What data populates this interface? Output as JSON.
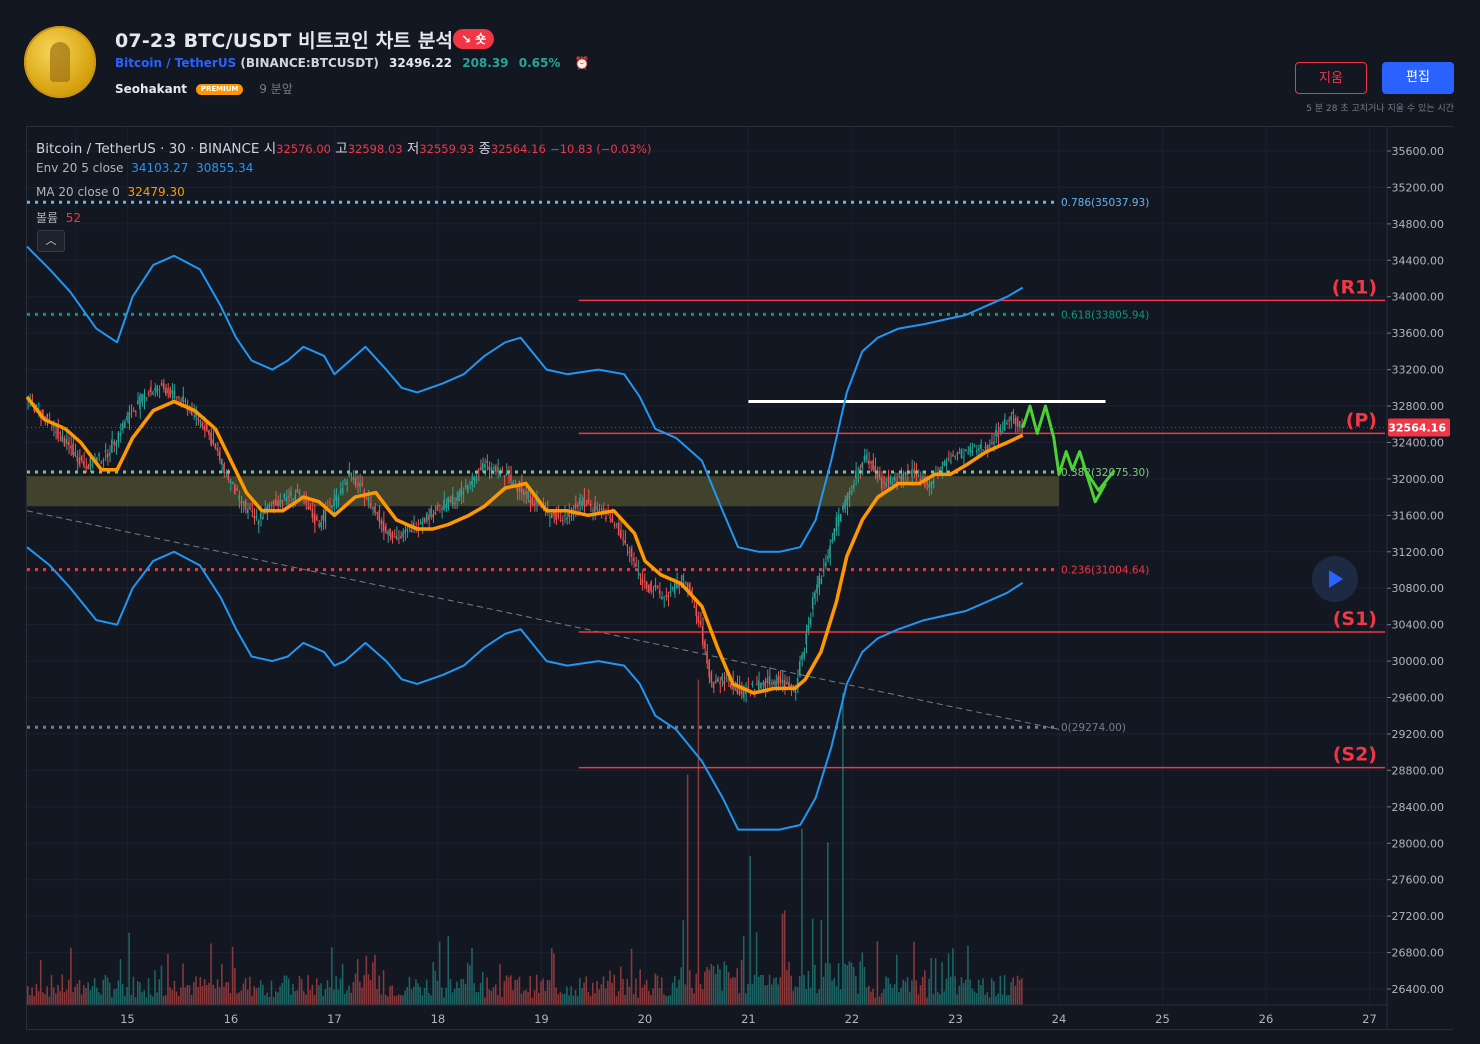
{
  "header": {
    "title": "07-23 BTC/USDT 비트코인 차트 분석",
    "badge": "↘ 숏",
    "symbol_name": "Bitcoin / TetherUS",
    "exchange_ticker": "(BINANCE:BTCUSDT)",
    "price": "32496.22",
    "change": "208.39",
    "change_pct": "0.65%",
    "author": "Seohakant",
    "author_badge": "PREMIUM",
    "time_ago": "9 분앞",
    "delete_label": "지움",
    "edit_label": "편집",
    "edit_note": "5 분 28 초 고치거나 지울 수 있는 시간"
  },
  "legend": {
    "symbol": "Bitcoin / TetherUS · 30 · BINANCE",
    "open_label": "시",
    "open": "32576.00",
    "high_label": "고",
    "high": "32598.03",
    "low_label": "저",
    "low": "32559.93",
    "close_label": "종",
    "close": "32564.16",
    "change": "−10.83 (−0.03%)",
    "env_label": "Env 20 5 close",
    "env_upper": "34103.27",
    "env_lower": "30855.34",
    "ma_label": "MA 20 close 0",
    "ma_value": "32479.30",
    "vol_label": "볼륨",
    "vol_value": "52",
    "collapse_icon": "chevron-up-icon"
  },
  "colors": {
    "background": "#131722",
    "envelope": "#2196f3",
    "ma": "#ff9800",
    "up": "#26a69a",
    "down": "#ef5350",
    "level": "#f23645",
    "projection": "#4cd137",
    "zone": "#4a4a2e"
  },
  "chart_data": {
    "type": "candlestick",
    "title": "Bitcoin / TetherUS · 30 · BINANCE",
    "y_axis": {
      "ticks": [
        "35600.00",
        "35200.00",
        "34800.00",
        "34400.00",
        "34000.00",
        "33600.00",
        "33200.00",
        "32800.00",
        "32400.00",
        "32000.00",
        "31600.00",
        "31200.00",
        "30800.00",
        "30400.00",
        "30000.00",
        "29600.00",
        "29200.00",
        "28800.00",
        "28400.00",
        "28000.00",
        "27600.00",
        "27200.00",
        "26800.00",
        "26400.00"
      ],
      "ylim": [
        26200,
        35800
      ],
      "last_price_label": "32564.16"
    },
    "x_axis": {
      "ticks": [
        14.5,
        15,
        16,
        17,
        18,
        19,
        20,
        21,
        22,
        23,
        24,
        25,
        26,
        27
      ],
      "tick_labels": [
        "15",
        "16",
        "17",
        "18",
        "19",
        "20",
        "21",
        "22",
        "23",
        "24",
        "25",
        "26",
        "27"
      ],
      "tick_values": [
        15,
        16,
        17,
        18,
        19,
        20,
        21,
        22,
        23,
        24,
        25,
        26,
        27
      ],
      "xlim": [
        14.03,
        27.15
      ],
      "last_bar_day": 23.65
    },
    "price_path": [
      [
        14.03,
        32900
      ],
      [
        14.3,
        32550
      ],
      [
        14.6,
        32150
      ],
      [
        14.8,
        32250
      ],
      [
        15.0,
        32650
      ],
      [
        15.2,
        32950
      ],
      [
        15.35,
        33000
      ],
      [
        15.55,
        32850
      ],
      [
        15.75,
        32600
      ],
      [
        15.95,
        32100
      ],
      [
        16.1,
        31750
      ],
      [
        16.25,
        31550
      ],
      [
        16.45,
        31750
      ],
      [
        16.65,
        31850
      ],
      [
        16.85,
        31500
      ],
      [
        17.0,
        31750
      ],
      [
        17.15,
        32050
      ],
      [
        17.3,
        31850
      ],
      [
        17.5,
        31450
      ],
      [
        17.65,
        31350
      ],
      [
        17.85,
        31550
      ],
      [
        18.05,
        31700
      ],
      [
        18.25,
        31850
      ],
      [
        18.45,
        32150
      ],
      [
        18.65,
        32050
      ],
      [
        18.85,
        31850
      ],
      [
        19.05,
        31650
      ],
      [
        19.2,
        31550
      ],
      [
        19.4,
        31750
      ],
      [
        19.6,
        31650
      ],
      [
        19.75,
        31450
      ],
      [
        19.9,
        31100
      ],
      [
        20.0,
        30850
      ],
      [
        20.2,
        30700
      ],
      [
        20.4,
        30900
      ],
      [
        20.55,
        30350
      ],
      [
        20.65,
        29750
      ],
      [
        20.8,
        29800
      ],
      [
        20.95,
        29650
      ],
      [
        21.1,
        29750
      ],
      [
        21.3,
        29800
      ],
      [
        21.45,
        29700
      ],
      [
        21.55,
        30150
      ],
      [
        21.65,
        30750
      ],
      [
        21.75,
        31050
      ],
      [
        21.85,
        31500
      ],
      [
        21.95,
        31750
      ],
      [
        22.05,
        32050
      ],
      [
        22.15,
        32250
      ],
      [
        22.3,
        31950
      ],
      [
        22.45,
        32000
      ],
      [
        22.6,
        32050
      ],
      [
        22.75,
        31950
      ],
      [
        22.9,
        32150
      ],
      [
        23.0,
        32250
      ],
      [
        23.15,
        32300
      ],
      [
        23.3,
        32350
      ],
      [
        23.45,
        32550
      ],
      [
        23.55,
        32700
      ],
      [
        23.65,
        32560
      ]
    ],
    "series": [
      {
        "name": "Env 20 5 close upper",
        "points": [
          [
            14.03,
            34550
          ],
          [
            14.25,
            34300
          ],
          [
            14.45,
            34050
          ],
          [
            14.7,
            33650
          ],
          [
            14.9,
            33500
          ],
          [
            15.05,
            34000
          ],
          [
            15.25,
            34350
          ],
          [
            15.45,
            34450
          ],
          [
            15.7,
            34300
          ],
          [
            15.9,
            33900
          ],
          [
            16.05,
            33550
          ],
          [
            16.2,
            33300
          ],
          [
            16.4,
            33200
          ],
          [
            16.55,
            33300
          ],
          [
            16.7,
            33450
          ],
          [
            16.9,
            33350
          ],
          [
            17.0,
            33150
          ],
          [
            17.1,
            33250
          ],
          [
            17.3,
            33450
          ],
          [
            17.5,
            33200
          ],
          [
            17.65,
            33000
          ],
          [
            17.8,
            32950
          ],
          [
            18.05,
            33050
          ],
          [
            18.25,
            33150
          ],
          [
            18.45,
            33350
          ],
          [
            18.65,
            33500
          ],
          [
            18.8,
            33550
          ],
          [
            19.05,
            33200
          ],
          [
            19.25,
            33150
          ],
          [
            19.55,
            33200
          ],
          [
            19.8,
            33150
          ],
          [
            19.95,
            32900
          ],
          [
            20.1,
            32550
          ],
          [
            20.3,
            32450
          ],
          [
            20.55,
            32200
          ],
          [
            20.75,
            31650
          ],
          [
            20.9,
            31250
          ],
          [
            21.1,
            31200
          ],
          [
            21.3,
            31200
          ],
          [
            21.5,
            31250
          ],
          [
            21.65,
            31550
          ],
          [
            21.8,
            32200
          ],
          [
            21.95,
            32950
          ],
          [
            22.1,
            33400
          ],
          [
            22.25,
            33550
          ],
          [
            22.45,
            33650
          ],
          [
            22.7,
            33700
          ],
          [
            22.9,
            33750
          ],
          [
            23.1,
            33800
          ],
          [
            23.3,
            33900
          ],
          [
            23.5,
            34000
          ],
          [
            23.65,
            34100
          ]
        ]
      },
      {
        "name": "Env 20 5 close lower",
        "points": [
          [
            14.03,
            31250
          ],
          [
            14.25,
            31050
          ],
          [
            14.45,
            30800
          ],
          [
            14.7,
            30450
          ],
          [
            14.9,
            30400
          ],
          [
            15.05,
            30800
          ],
          [
            15.25,
            31100
          ],
          [
            15.45,
            31200
          ],
          [
            15.7,
            31050
          ],
          [
            15.9,
            30700
          ],
          [
            16.05,
            30350
          ],
          [
            16.2,
            30050
          ],
          [
            16.4,
            30000
          ],
          [
            16.55,
            30050
          ],
          [
            16.7,
            30200
          ],
          [
            16.9,
            30100
          ],
          [
            17.0,
            29950
          ],
          [
            17.1,
            30000
          ],
          [
            17.3,
            30200
          ],
          [
            17.5,
            30000
          ],
          [
            17.65,
            29800
          ],
          [
            17.8,
            29750
          ],
          [
            18.05,
            29850
          ],
          [
            18.25,
            29950
          ],
          [
            18.45,
            30150
          ],
          [
            18.65,
            30300
          ],
          [
            18.8,
            30350
          ],
          [
            19.05,
            30000
          ],
          [
            19.25,
            29950
          ],
          [
            19.55,
            30000
          ],
          [
            19.8,
            29950
          ],
          [
            19.95,
            29750
          ],
          [
            20.1,
            29400
          ],
          [
            20.3,
            29250
          ],
          [
            20.55,
            28900
          ],
          [
            20.75,
            28500
          ],
          [
            20.9,
            28150
          ],
          [
            21.1,
            28150
          ],
          [
            21.3,
            28150
          ],
          [
            21.5,
            28200
          ],
          [
            21.65,
            28500
          ],
          [
            21.8,
            29050
          ],
          [
            21.95,
            29750
          ],
          [
            22.1,
            30100
          ],
          [
            22.25,
            30250
          ],
          [
            22.45,
            30350
          ],
          [
            22.7,
            30450
          ],
          [
            22.9,
            30500
          ],
          [
            23.1,
            30550
          ],
          [
            23.3,
            30650
          ],
          [
            23.5,
            30750
          ],
          [
            23.65,
            30860
          ]
        ]
      },
      {
        "name": "MA 20 close 0",
        "points": [
          [
            14.03,
            32900
          ],
          [
            14.2,
            32650
          ],
          [
            14.4,
            32550
          ],
          [
            14.55,
            32400
          ],
          [
            14.75,
            32100
          ],
          [
            14.9,
            32100
          ],
          [
            15.05,
            32450
          ],
          [
            15.25,
            32750
          ],
          [
            15.45,
            32850
          ],
          [
            15.65,
            32750
          ],
          [
            15.85,
            32550
          ],
          [
            16.0,
            32200
          ],
          [
            16.15,
            31850
          ],
          [
            16.3,
            31650
          ],
          [
            16.5,
            31650
          ],
          [
            16.7,
            31800
          ],
          [
            16.85,
            31750
          ],
          [
            17.0,
            31600
          ],
          [
            17.2,
            31800
          ],
          [
            17.4,
            31850
          ],
          [
            17.6,
            31550
          ],
          [
            17.8,
            31450
          ],
          [
            17.95,
            31450
          ],
          [
            18.1,
            31500
          ],
          [
            18.3,
            31600
          ],
          [
            18.45,
            31700
          ],
          [
            18.65,
            31900
          ],
          [
            18.85,
            31950
          ],
          [
            19.05,
            31650
          ],
          [
            19.25,
            31650
          ],
          [
            19.45,
            31600
          ],
          [
            19.7,
            31650
          ],
          [
            19.9,
            31400
          ],
          [
            20.0,
            31100
          ],
          [
            20.15,
            30950
          ],
          [
            20.35,
            30850
          ],
          [
            20.55,
            30600
          ],
          [
            20.7,
            30150
          ],
          [
            20.85,
            29750
          ],
          [
            21.05,
            29650
          ],
          [
            21.25,
            29700
          ],
          [
            21.45,
            29700
          ],
          [
            21.55,
            29800
          ],
          [
            21.7,
            30100
          ],
          [
            21.85,
            30650
          ],
          [
            21.95,
            31150
          ],
          [
            22.1,
            31550
          ],
          [
            22.25,
            31800
          ],
          [
            22.45,
            31950
          ],
          [
            22.65,
            31950
          ],
          [
            22.8,
            32050
          ],
          [
            22.95,
            32050
          ],
          [
            23.1,
            32150
          ],
          [
            23.3,
            32300
          ],
          [
            23.5,
            32400
          ],
          [
            23.65,
            32480
          ]
        ]
      }
    ],
    "horizontal_levels": [
      {
        "label": "(R1)",
        "value": 33960,
        "start_day": 19.36
      },
      {
        "label": "(P)",
        "value": 32500,
        "start_day": 19.36
      },
      {
        "label": "(S1)",
        "value": 30320,
        "start_day": 19.36
      },
      {
        "label": "(S2)",
        "value": 28830,
        "start_day": 19.36
      }
    ],
    "fibonacci": [
      {
        "label": "0.786(35037.93)",
        "value": 35037.93,
        "color": "#64b5f6"
      },
      {
        "label": "0.618(33805.94)",
        "value": 33805.94,
        "color": "#089981"
      },
      {
        "label": "0.382(32075.30)",
        "value": 32075.3,
        "color": "#81c784"
      },
      {
        "label": "0.236(31004.64)",
        "value": 31004.64,
        "color": "#f23645"
      },
      {
        "label": "0(29274.00)",
        "value": 29274.0,
        "color": "#787b86"
      }
    ],
    "support_zone": [
      31700,
      32030
    ],
    "resistance_line": {
      "value": 32850,
      "from_day": 21.0,
      "to_day": 24.45,
      "color": "#ffffff"
    },
    "trend_line": {
      "from": [
        14.03,
        31650
      ],
      "to": [
        24.0,
        29250
      ]
    },
    "projection": [
      [
        23.65,
        32560
      ],
      [
        23.72,
        32800
      ],
      [
        23.79,
        32500
      ],
      [
        23.87,
        32800
      ],
      [
        23.95,
        32450
      ],
      [
        24.0,
        32050
      ],
      [
        24.07,
        32300
      ],
      [
        24.13,
        32100
      ],
      [
        24.2,
        32300
      ],
      [
        24.35,
        31750
      ],
      [
        24.45,
        31950
      ]
    ],
    "volume_peaks": [
      [
        20.5,
        2400
      ],
      [
        21.9,
        2300
      ],
      [
        20.4,
        1700
      ],
      [
        21.5,
        1300
      ],
      [
        21.0,
        1100
      ],
      [
        21.75,
        1200
      ],
      [
        15.0,
        800
      ],
      [
        18.0,
        700
      ]
    ],
    "volume_max": 2600
  }
}
